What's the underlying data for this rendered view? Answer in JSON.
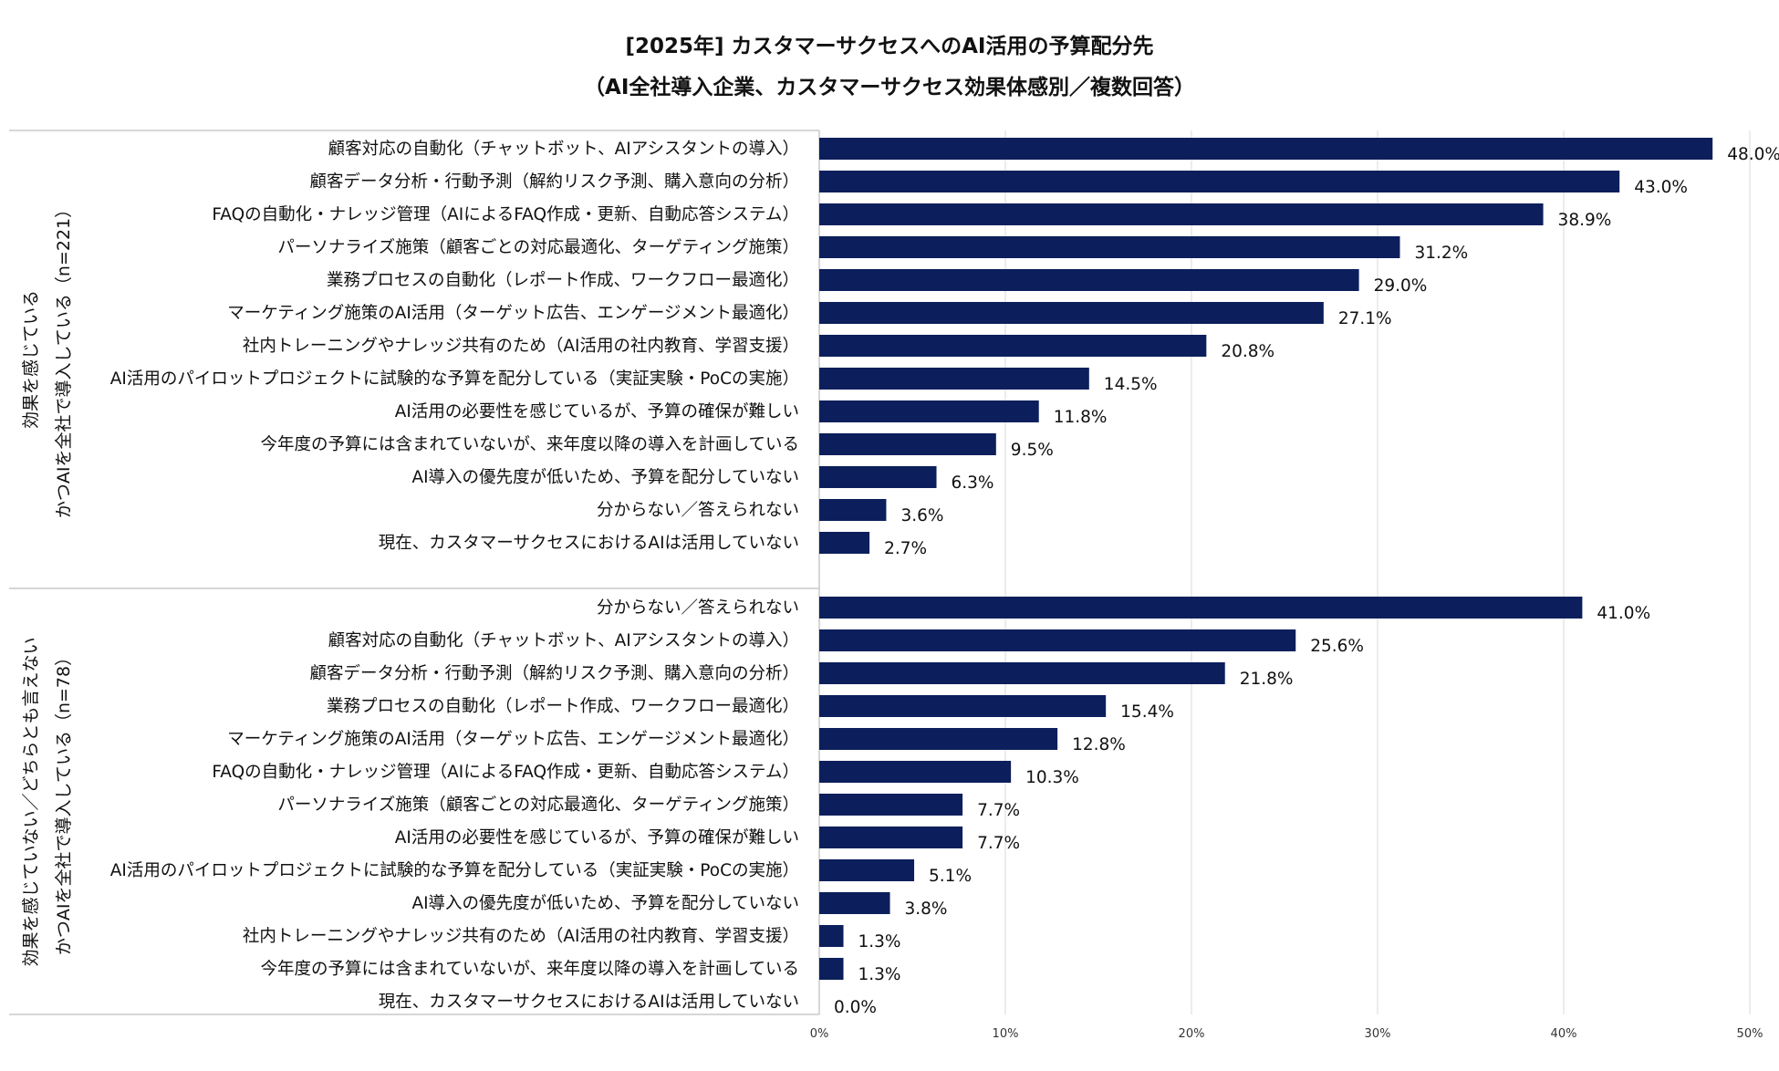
{
  "chart_data": {
    "type": "bar",
    "orientation": "horizontal",
    "title": "[2025年] カスタマーサクセスへのAI活用の予算配分先",
    "subtitle": "（AI全社導入企業、カスタマーサクセス効果体感別／複数回答）",
    "xlim": [
      0,
      50
    ],
    "xticks": [
      "0%",
      "10%",
      "20%",
      "30%",
      "40%",
      "50%"
    ],
    "value_suffix": "%",
    "bar_color": "#0c1f5c",
    "grid": true,
    "groups": [
      {
        "label_line1": "効果を感じている",
        "label_line2": "かつAIを全社で導入している（n=221）",
        "categories": [
          "顧客対応の自動化（チャットボット、AIアシスタントの導入）",
          "顧客データ分析・行動予測（解約リスク予測、購入意向の分析）",
          "FAQの自動化・ナレッジ管理（AIによるFAQ作成・更新、自動応答システム）",
          "パーソナライズ施策（顧客ごとの対応最適化、ターゲティング施策）",
          "業務プロセスの自動化（レポート作成、ワークフロー最適化）",
          "マーケティング施策のAI活用（ターゲット広告、エンゲージメント最適化）",
          "社内トレーニングやナレッジ共有のため（AI活用の社内教育、学習支援）",
          "AI活用のパイロットプロジェクトに試験的な予算を配分している（実証実験・PoCの実施）",
          "AI活用の必要性を感じているが、予算の確保が難しい",
          "今年度の予算には含まれていないが、来年度以降の導入を計画している",
          "AI導入の優先度が低いため、予算を配分していない",
          "分からない／答えられない",
          "現在、カスタマーサクセスにおけるAIは活用していない"
        ],
        "values": [
          48.0,
          43.0,
          38.9,
          31.2,
          29.0,
          27.1,
          20.8,
          14.5,
          11.8,
          9.5,
          6.3,
          3.6,
          2.7
        ],
        "labels": [
          "48.0%",
          "43.0%",
          "38.9%",
          "31.2%",
          "29.0%",
          "27.1%",
          "20.8%",
          "14.5%",
          "11.8%",
          "9.5%",
          "6.3%",
          "3.6%",
          "2.7%"
        ]
      },
      {
        "label_line1": "効果を感じていない／どちらとも言えない",
        "label_line2": "かつAIを全社で導入している（n=78）",
        "categories": [
          "分からない／答えられない",
          "顧客対応の自動化（チャットボット、AIアシスタントの導入）",
          "顧客データ分析・行動予測（解約リスク予測、購入意向の分析）",
          "業務プロセスの自動化（レポート作成、ワークフロー最適化）",
          "マーケティング施策のAI活用（ターゲット広告、エンゲージメント最適化）",
          "FAQの自動化・ナレッジ管理（AIによるFAQ作成・更新、自動応答システム）",
          "パーソナライズ施策（顧客ごとの対応最適化、ターゲティング施策）",
          "AI活用の必要性を感じているが、予算の確保が難しい",
          "AI活用のパイロットプロジェクトに試験的な予算を配分している（実証実験・PoCの実施）",
          "AI導入の優先度が低いため、予算を配分していない",
          "社内トレーニングやナレッジ共有のため（AI活用の社内教育、学習支援）",
          "今年度の予算には含まれていないが、来年度以降の導入を計画している",
          "現在、カスタマーサクセスにおけるAIは活用していない"
        ],
        "values": [
          41.0,
          25.6,
          21.8,
          15.4,
          12.8,
          10.3,
          7.7,
          7.7,
          5.1,
          3.8,
          1.3,
          1.3,
          0.0
        ],
        "labels": [
          "41.0%",
          "25.6%",
          "21.8%",
          "15.4%",
          "12.8%",
          "10.3%",
          "7.7%",
          "7.7%",
          "5.1%",
          "3.8%",
          "1.3%",
          "1.3%",
          "0.0%"
        ]
      }
    ]
  }
}
